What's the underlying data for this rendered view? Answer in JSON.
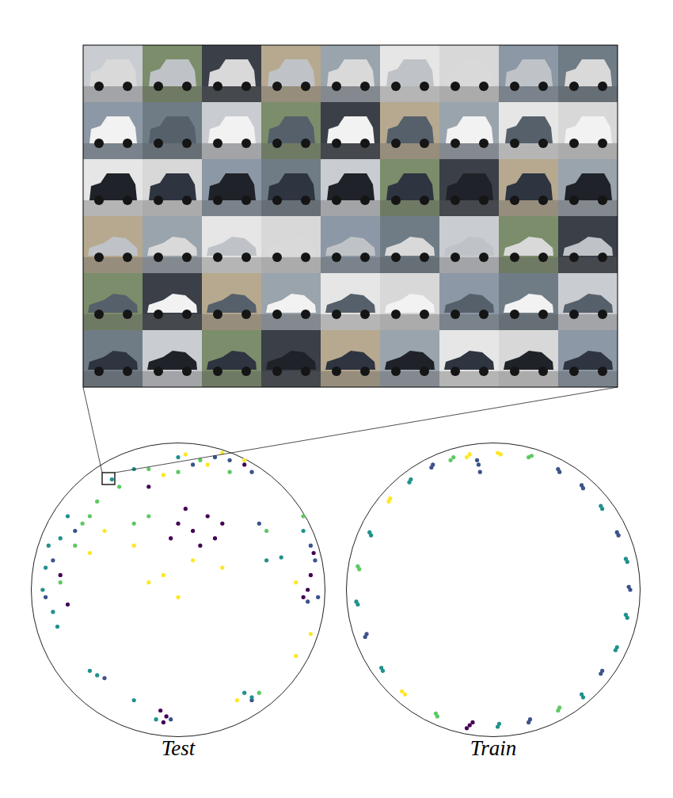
{
  "chart_data": [
    {
      "type": "scatter",
      "title": "Test",
      "xlim": [
        -1,
        1
      ],
      "ylim": [
        -1,
        1
      ],
      "tick_labels": false,
      "marker": "circle",
      "series": [
        {
          "color": "#440154",
          "x": [
            0.0,
            0.1,
            0.2,
            0.15,
            0.25,
            0.05,
            0.3,
            -0.05,
            0.9,
            0.88,
            0.92,
            0.85,
            -0.12,
            -0.08,
            -0.1,
            -0.8,
            -0.75,
            0.45,
            -0.2
          ],
          "y": [
            0.45,
            0.4,
            0.5,
            0.3,
            0.35,
            0.55,
            0.45,
            0.35,
            0.1,
            0.0,
            0.25,
            -0.05,
            -0.82,
            -0.86,
            -0.9,
            0.1,
            -0.1,
            0.85,
            0.7
          ]
        },
        {
          "color": "#3b528b",
          "x": [
            0.1,
            0.25,
            0.5,
            0.35,
            0.9,
            0.93,
            0.95,
            0.88,
            -0.85,
            -0.7,
            -0.9,
            -0.05,
            0.5,
            -0.5,
            0.55
          ],
          "y": [
            0.85,
            0.9,
            0.8,
            0.88,
            0.3,
            0.2,
            -0.05,
            -0.08,
            0.2,
            0.4,
            -0.05,
            -0.88,
            -0.75,
            -0.6,
            0.45
          ]
        },
        {
          "color": "#21918c",
          "x": [
            -0.9,
            -0.88,
            -0.85,
            -0.8,
            -0.92,
            -0.75,
            -0.82,
            -0.3,
            -0.45,
            0.0,
            0.6,
            0.7,
            0.85,
            -0.6,
            -0.55,
            0.45,
            0.5,
            -0.15,
            -0.3
          ],
          "y": [
            0.15,
            0.3,
            -0.15,
            0.35,
            0.0,
            0.5,
            -0.25,
            0.82,
            0.75,
            0.9,
            0.2,
            0.22,
            0.4,
            -0.55,
            -0.58,
            -0.7,
            -0.73,
            -0.88,
            -0.75
          ]
        },
        {
          "color": "#5ec962",
          "x": [
            -0.7,
            -0.65,
            -0.8,
            -0.6,
            -0.55,
            -0.2,
            0.0,
            0.15,
            -0.4,
            0.35,
            0.85,
            0.6,
            -0.2,
            -0.3,
            0.55
          ],
          "y": [
            0.3,
            0.45,
            0.05,
            0.5,
            0.6,
            0.82,
            0.8,
            0.88,
            0.7,
            0.8,
            0.5,
            0.4,
            0.5,
            0.45,
            -0.7
          ]
        },
        {
          "color": "#fde725",
          "x": [
            0.05,
            0.2,
            -0.1,
            0.3,
            0.45,
            0.1,
            -0.1,
            0.3,
            -0.3,
            0.0,
            -0.2,
            -0.6,
            -0.5,
            0.9,
            0.8,
            0.8,
            0.4
          ],
          "y": [
            0.92,
            0.85,
            0.78,
            0.93,
            0.88,
            0.2,
            0.1,
            0.15,
            0.3,
            -0.05,
            0.05,
            0.25,
            0.4,
            -0.3,
            0.05,
            -0.45,
            -0.75
          ]
        }
      ]
    },
    {
      "type": "scatter",
      "title": "Train",
      "xlim": [
        -1,
        1
      ],
      "ylim": [
        -1,
        1
      ],
      "tick_labels": false,
      "marker": "circle",
      "series": [
        {
          "color": "#440154",
          "x": [
            -0.16,
            -0.14,
            -0.18
          ],
          "y": [
            -0.92,
            -0.9,
            -0.94
          ]
        },
        {
          "color": "#3b528b",
          "x": [
            -0.1,
            -0.09,
            -0.11,
            0.44,
            0.45,
            0.6,
            0.61,
            0.84,
            0.85,
            0.93,
            0.92,
            0.73,
            0.74,
            0.24,
            0.25,
            -0.87,
            -0.86,
            -0.42,
            -0.41
          ],
          "y": [
            0.85,
            0.8,
            0.88,
            0.82,
            0.8,
            0.71,
            0.69,
            0.39,
            0.37,
            0.0,
            0.02,
            -0.57,
            -0.55,
            -0.9,
            -0.88,
            -0.32,
            -0.3,
            0.83,
            0.85
          ]
        },
        {
          "color": "#21918c",
          "x": [
            0.73,
            0.74,
            0.91,
            0.9,
            0.91,
            0.9,
            0.84,
            0.83,
            0.6,
            0.61,
            0.03,
            0.04,
            -0.76,
            -0.75,
            -0.93,
            -0.92,
            -0.84,
            -0.83,
            -0.57,
            -0.56
          ],
          "y": [
            0.57,
            0.55,
            0.19,
            0.21,
            -0.19,
            -0.17,
            -0.39,
            -0.41,
            -0.71,
            -0.73,
            -0.93,
            -0.91,
            -0.53,
            -0.55,
            -0.08,
            -0.1,
            0.39,
            0.37,
            0.73,
            0.75
          ]
        },
        {
          "color": "#5ec962",
          "x": [
            0.24,
            0.26,
            0.44,
            0.45,
            -0.39,
            -0.38,
            -0.92,
            -0.91,
            -0.29,
            -0.27
          ],
          "y": [
            0.9,
            0.91,
            -0.82,
            -0.8,
            -0.84,
            -0.86,
            0.16,
            0.14,
            0.88,
            0.9
          ]
        },
        {
          "color": "#fde725",
          "x": [
            -0.16,
            -0.18,
            0.03,
            0.05,
            -0.6,
            -0.62,
            -0.71,
            -0.7
          ],
          "y": [
            0.92,
            0.9,
            0.93,
            0.92,
            -0.71,
            -0.69,
            0.6,
            0.62
          ]
        }
      ]
    }
  ]
}
